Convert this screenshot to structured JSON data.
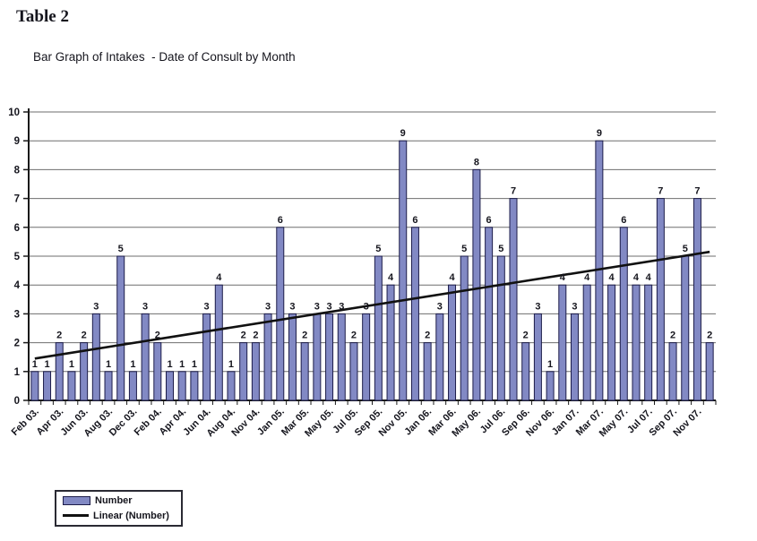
{
  "page": {
    "title": "Table 2",
    "subtitle": "Bar Graph of Intakes  - Date of Consult by Month"
  },
  "chart_data": {
    "type": "bar",
    "title": "Bar Graph of Intakes - Date of Consult by Month",
    "xlabel": "",
    "ylabel": "",
    "ylim": [
      0,
      10
    ],
    "y_ticks": [
      0,
      1,
      2,
      3,
      4,
      5,
      6,
      7,
      8,
      9,
      10
    ],
    "grid": true,
    "data_labels": true,
    "x_tick_labels": [
      "Feb 03.",
      "Apr 03.",
      "Jun 03.",
      "Aug 03.",
      "Dec 03.",
      "Feb 04.",
      "Apr 04.",
      "Jun 04.",
      "Aug 04.",
      "Nov 04.",
      "Jan 05.",
      "Mar 05.",
      "May 05.",
      "Jul 05.",
      "Sep 05.",
      "Nov 05.",
      "Jan 06.",
      "Mar 06.",
      "May 06.",
      "Jul 06.",
      "Sep 06.",
      "Nov 06.",
      "Jan 07.",
      "Mar 07.",
      "May 07.",
      "Jul 07.",
      "Sep 07.",
      "Nov 07."
    ],
    "bars_per_tick_label": 2,
    "series": [
      {
        "name": "Number",
        "values": [
          1,
          1,
          2,
          1,
          2,
          3,
          1,
          5,
          1,
          3,
          2,
          1,
          1,
          1,
          3,
          4,
          1,
          2,
          2,
          3,
          6,
          3,
          2,
          3,
          3,
          3,
          2,
          3,
          5,
          4,
          9,
          6,
          2,
          3,
          4,
          5,
          8,
          6,
          5,
          7,
          2,
          3,
          1,
          4,
          3,
          4,
          9,
          4,
          6,
          4,
          4,
          7,
          2,
          5,
          7,
          2
        ]
      }
    ],
    "trendline": {
      "name": "Linear (Number)",
      "start_value": 1.45,
      "end_value": 5.15
    },
    "legend": {
      "position": "bottom-left",
      "entries": [
        "Number",
        "Linear (Number)"
      ]
    },
    "colors": {
      "bar_fill": "#8289C4",
      "bar_border": "#1C1C49",
      "gridline": "#6E6E6E",
      "axis": "#1A1A1A",
      "trendline": "#111111",
      "text": "#15151D",
      "background": "#FFFFFF"
    }
  }
}
